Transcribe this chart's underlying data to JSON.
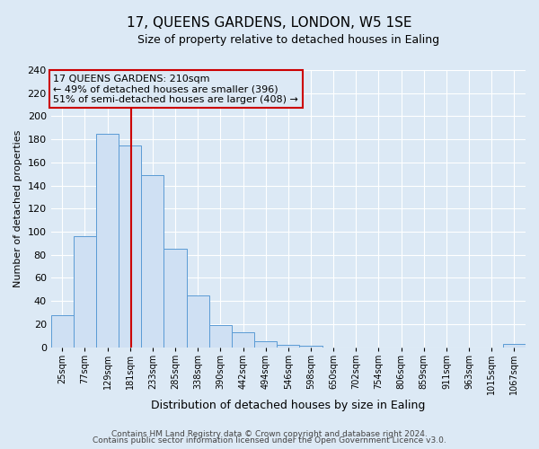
{
  "title": "17, QUEENS GARDENS, LONDON, W5 1SE",
  "subtitle": "Size of property relative to detached houses in Ealing",
  "xlabel": "Distribution of detached houses by size in Ealing",
  "ylabel": "Number of detached properties",
  "bin_labels": [
    "25sqm",
    "77sqm",
    "129sqm",
    "181sqm",
    "233sqm",
    "285sqm",
    "338sqm",
    "390sqm",
    "442sqm",
    "494sqm",
    "546sqm",
    "598sqm",
    "650sqm",
    "702sqm",
    "754sqm",
    "806sqm",
    "859sqm",
    "911sqm",
    "963sqm",
    "1015sqm",
    "1067sqm"
  ],
  "bar_heights": [
    28,
    96,
    185,
    175,
    149,
    85,
    45,
    19,
    13,
    5,
    2,
    1,
    0,
    0,
    0,
    0,
    0,
    0,
    0,
    0,
    3
  ],
  "bar_color": "#cfe0f3",
  "bar_edge_color": "#5b9bd5",
  "vline_color": "#cc0000",
  "ylim": [
    0,
    240
  ],
  "yticks": [
    0,
    20,
    40,
    60,
    80,
    100,
    120,
    140,
    160,
    180,
    200,
    220,
    240
  ],
  "annotation_title": "17 QUEENS GARDENS: 210sqm",
  "annotation_line1": "← 49% of detached houses are smaller (396)",
  "annotation_line2": "51% of semi-detached houses are larger (408) →",
  "annotation_box_color": "#cc0000",
  "footer_line1": "Contains HM Land Registry data © Crown copyright and database right 2024.",
  "footer_line2": "Contains public sector information licensed under the Open Government Licence v3.0.",
  "background_color": "#dce9f5",
  "plot_bg_color": "#dce9f5",
  "grid_color": "#ffffff",
  "title_fontsize": 11,
  "subtitle_fontsize": 9
}
